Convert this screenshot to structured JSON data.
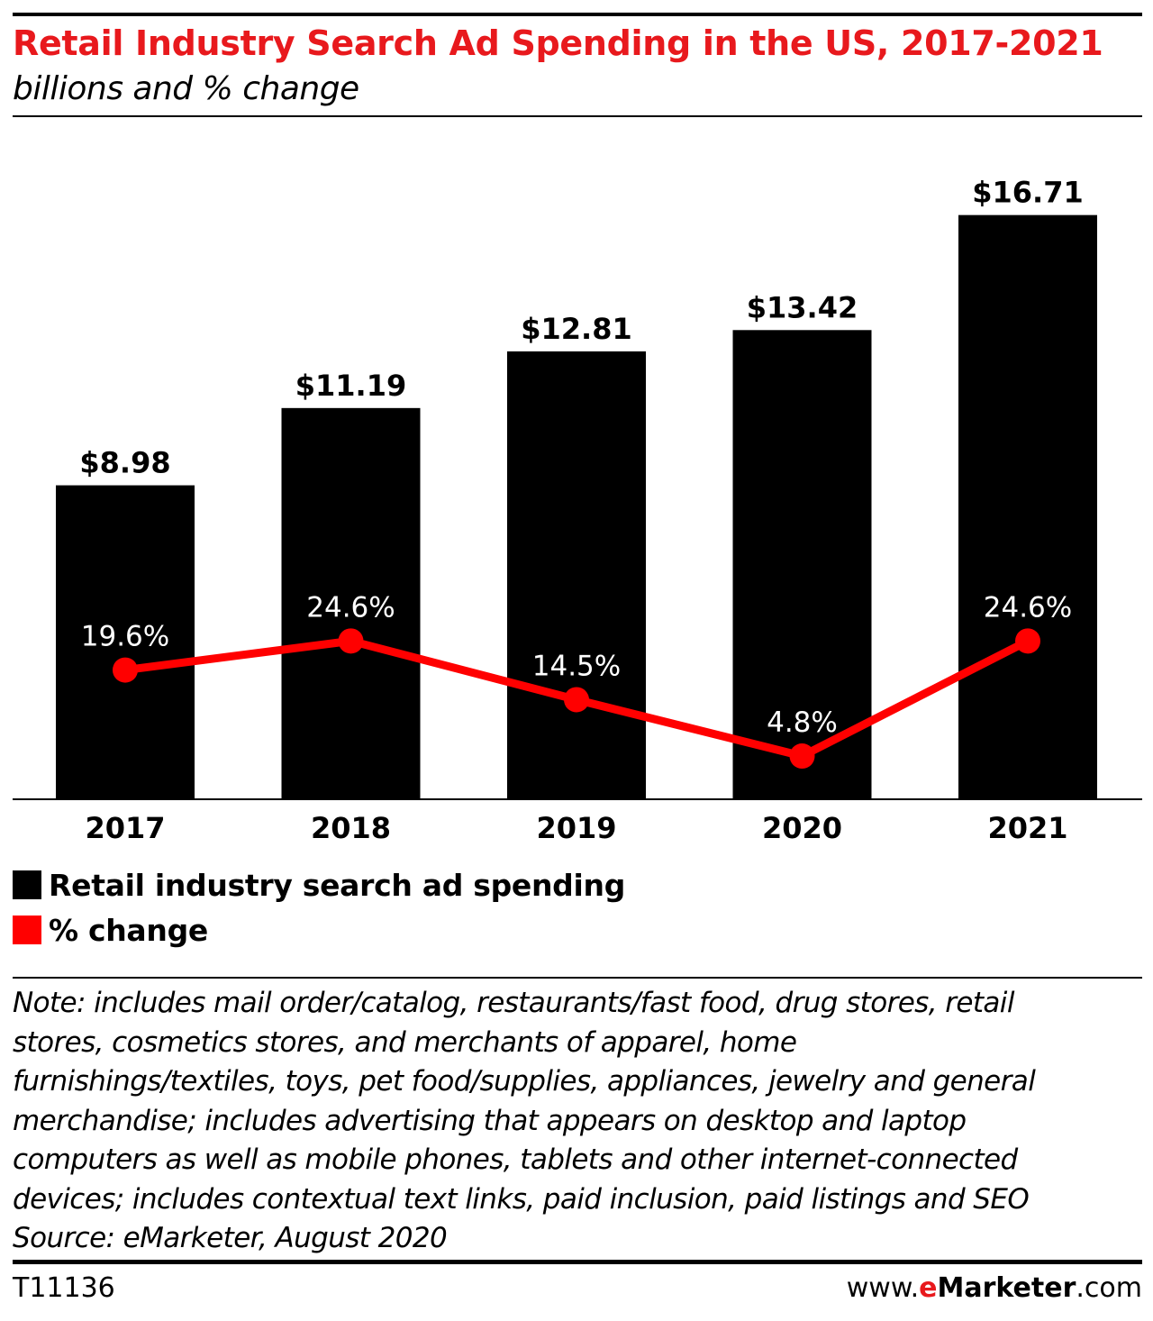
{
  "header": {
    "title": "Retail Industry Search Ad Spending in the US, 2017-2021",
    "subtitle": "billions and % change"
  },
  "colors": {
    "title": "#e8191d",
    "bar": "#000000",
    "line": "#ff0000"
  },
  "chart_data": {
    "type": "bar",
    "categories": [
      "2017",
      "2018",
      "2019",
      "2020",
      "2021"
    ],
    "series": [
      {
        "name": "Retail industry search ad spending",
        "type": "bar",
        "values": [
          8.98,
          11.19,
          12.81,
          13.42,
          16.71
        ],
        "labels": [
          "$8.98",
          "$11.19",
          "$12.81",
          "$13.42",
          "$16.71"
        ]
      },
      {
        "name": "% change",
        "type": "line",
        "values": [
          19.6,
          24.6,
          14.5,
          4.8,
          24.6
        ],
        "labels": [
          "19.6%",
          "24.6%",
          "14.5%",
          "4.8%",
          "24.6%"
        ]
      }
    ],
    "grid": false,
    "legend_position": "bottom-left"
  },
  "legend": {
    "items": [
      {
        "label": "Retail industry search ad spending",
        "color": "#000000"
      },
      {
        "label": "% change",
        "color": "#ff0000"
      }
    ]
  },
  "note": {
    "lines": [
      "Note: includes mail order/catalog, restaurants/fast food, drug stores, retail",
      "stores, cosmetics stores, and merchants of apparel, home",
      "furnishings/textiles, toys, pet food/supplies, appliances, jewelry and general",
      "merchandise; includes advertising that appears on desktop and laptop",
      "computers as well as mobile phones, tablets and other internet-connected",
      "devices; includes contextual text links, paid inclusion, paid listings and SEO",
      "Source: eMarketer, August 2020"
    ]
  },
  "footer": {
    "id": "T11136",
    "brand_prefix": "www.",
    "brand_e": "e",
    "brand_name": "Marketer",
    "brand_suffix": ".com"
  }
}
